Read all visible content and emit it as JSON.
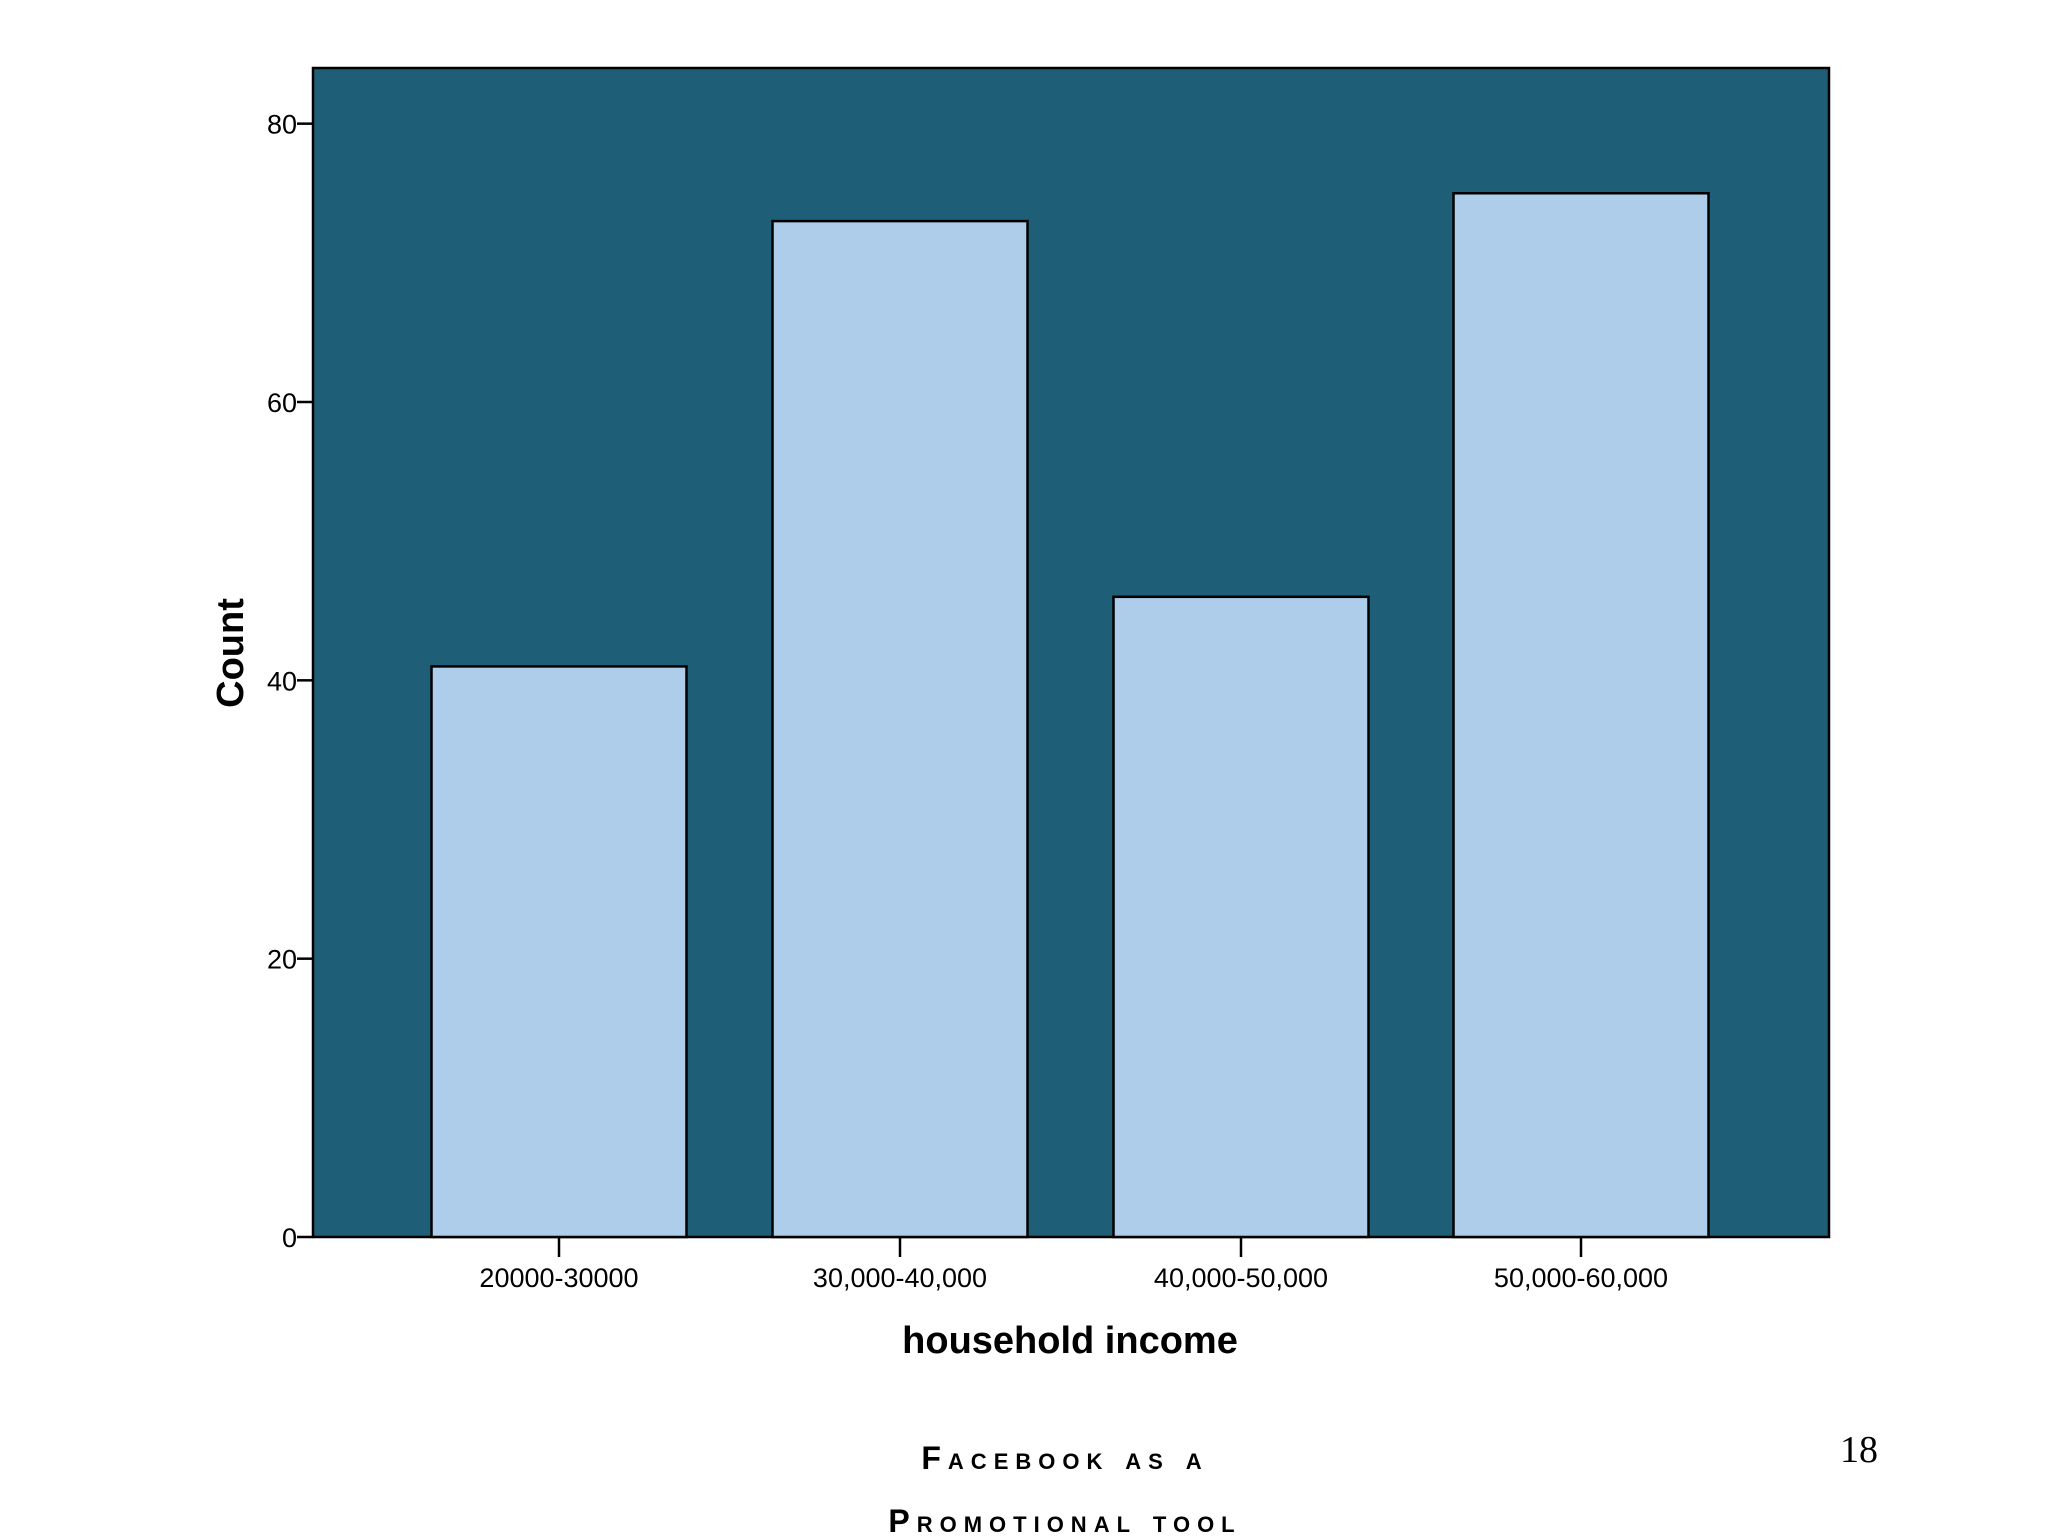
{
  "chart_data": {
    "type": "bar",
    "categories": [
      "20000-30000",
      "30,000-40,000",
      "40,000-50,000",
      "50,000-60,000"
    ],
    "values": [
      41,
      73,
      46,
      75
    ],
    "xlabel": "household income",
    "ylabel": "Count",
    "ylim": [
      0,
      84
    ],
    "yticks": [
      0,
      20,
      40,
      60,
      80
    ],
    "grid": false,
    "colors": {
      "plot_background": "#1e5f77",
      "bar_fill": "#adcdeb",
      "bar_stroke": "#000000"
    }
  },
  "footer": {
    "line1": "Facebook as a",
    "line2": "Promotional tool",
    "page_number": "18"
  }
}
